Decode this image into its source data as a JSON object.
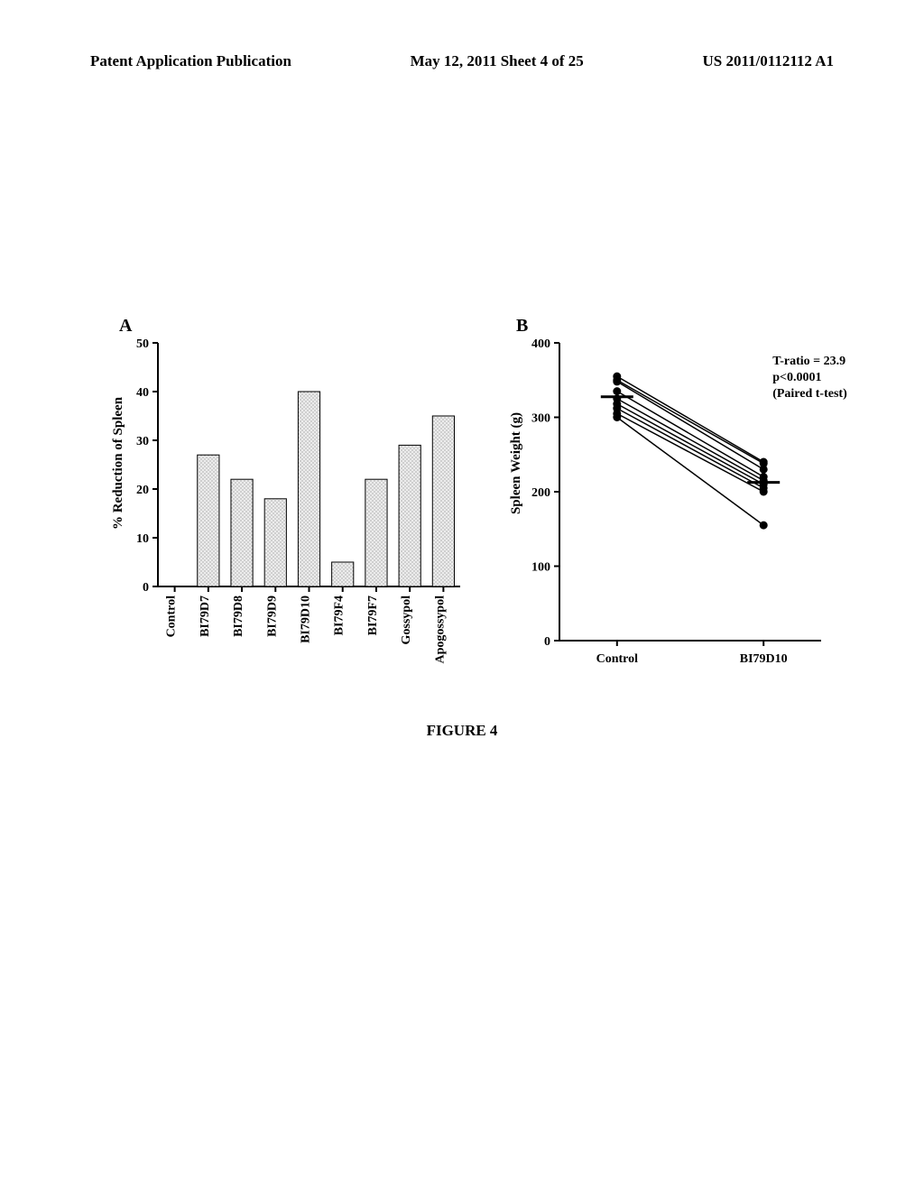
{
  "header": {
    "left": "Patent Application Publication",
    "center": "May 12, 2011  Sheet 4 of 25",
    "right": "US 2011/0112112 A1"
  },
  "figure_caption": "FIGURE 4",
  "panel_a": {
    "label": "A",
    "type": "bar",
    "y_label": "% Reduction of Spleen",
    "categories": [
      "Control",
      "BI79D7",
      "BI79D8",
      "BI79D9",
      "BI79D10",
      "BI79F4",
      "BI79F7",
      "Gossypol",
      "Apogossypol"
    ],
    "values": [
      0,
      27,
      22,
      18,
      40,
      5,
      22,
      29,
      35
    ],
    "ylim": [
      0,
      50
    ],
    "ytick_step": 10,
    "bar_fill": "#cccccc",
    "bar_stroke": "#000000",
    "bar_width": 0.65,
    "axis_color": "#000000",
    "background": "#ffffff"
  },
  "panel_b": {
    "label": "B",
    "type": "paired-scatter",
    "y_label": "Spleen Weight (g)",
    "x_categories": [
      "Control",
      "BI79D10"
    ],
    "ylim": [
      0,
      400
    ],
    "ytick_step": 100,
    "stats": {
      "t_ratio": "T-ratio = 23.9",
      "p_value": "p<0.0001",
      "test": "(Paired t-test)"
    },
    "control_values": [
      355,
      350,
      348,
      335,
      325,
      318,
      312,
      305,
      300
    ],
    "treatment_values": [
      240,
      238,
      230,
      220,
      215,
      210,
      205,
      200,
      155
    ],
    "point_color": "#000000",
    "line_color": "#000000",
    "axis_color": "#000000",
    "background": "#ffffff"
  }
}
